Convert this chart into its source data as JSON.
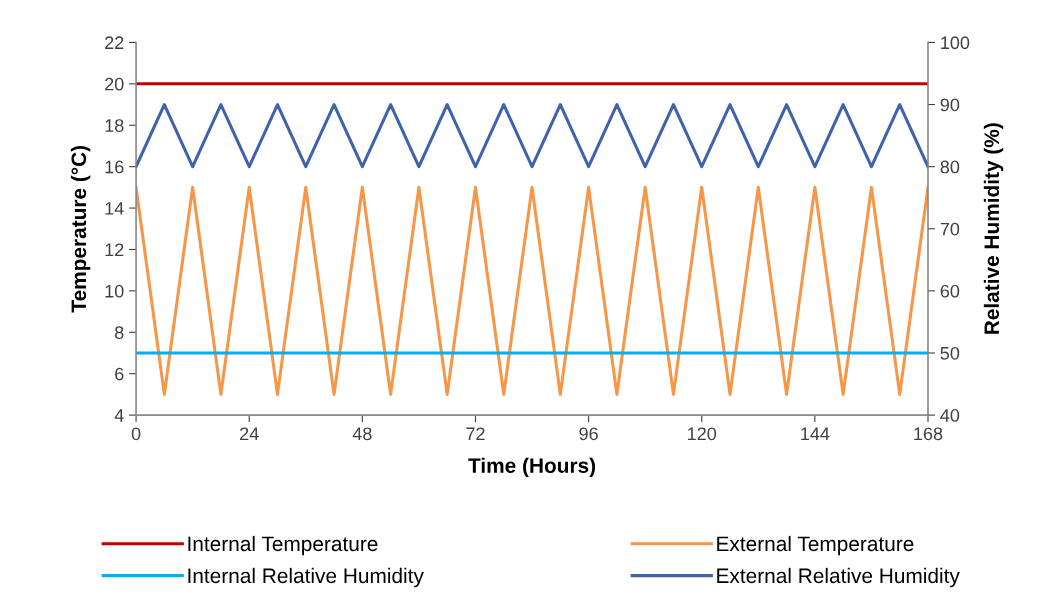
{
  "chart_data": {
    "type": "line",
    "xlabel": "Time (Hours)",
    "ylabel": "Temperature (°C)",
    "y2label": "Relative Humidity (%)",
    "x": [
      0,
      6,
      12,
      18,
      24,
      30,
      36,
      42,
      48,
      54,
      60,
      66,
      72,
      78,
      84,
      90,
      96,
      102,
      108,
      114,
      120,
      126,
      132,
      138,
      144,
      150,
      156,
      162,
      168
    ],
    "xlim": [
      0,
      168
    ],
    "xticks": [
      0,
      24,
      48,
      72,
      96,
      120,
      144,
      168
    ],
    "ylim": [
      4,
      22
    ],
    "yticks": [
      4,
      6,
      8,
      10,
      12,
      14,
      16,
      18,
      20,
      22
    ],
    "y2lim": [
      40,
      100
    ],
    "y2ticks": [
      40,
      50,
      60,
      70,
      80,
      90,
      100
    ],
    "grid": false,
    "legend": "bottom",
    "marker": "none",
    "line_style": "solid",
    "series": [
      {
        "name": "Internal Temperature",
        "color": "#c00000",
        "values": [
          20,
          20,
          20,
          20,
          20,
          20,
          20,
          20,
          20,
          20,
          20,
          20,
          20,
          20,
          20,
          20,
          20,
          20,
          20,
          20,
          20,
          20,
          20,
          20,
          20,
          20,
          20,
          20,
          20
        ]
      },
      {
        "name": "External Temperature",
        "color": "#f79646",
        "values": [
          15,
          5,
          15,
          5,
          15,
          5,
          15,
          5,
          15,
          5,
          15,
          5,
          15,
          5,
          15,
          5,
          15,
          5,
          15,
          5,
          15,
          5,
          15,
          5,
          15,
          5,
          15,
          5,
          15
        ]
      },
      {
        "name": "Internal Relative Humidity",
        "color": "#00b0f0",
        "axis": "y2",
        "values": [
          50,
          50,
          50,
          50,
          50,
          50,
          50,
          50,
          50,
          50,
          50,
          50,
          50,
          50,
          50,
          50,
          50,
          50,
          50,
          50,
          50,
          50,
          50,
          50,
          50,
          50,
          50,
          50,
          50
        ]
      },
      {
        "name": "External Relative Humidity",
        "color": "#3f63ab",
        "axis": "y2",
        "values": [
          80,
          90,
          80,
          90,
          80,
          90,
          80,
          90,
          80,
          90,
          80,
          90,
          80,
          90,
          80,
          90,
          80,
          90,
          80,
          90,
          80,
          90,
          80,
          90,
          80,
          90,
          80,
          90,
          80
        ]
      }
    ]
  }
}
